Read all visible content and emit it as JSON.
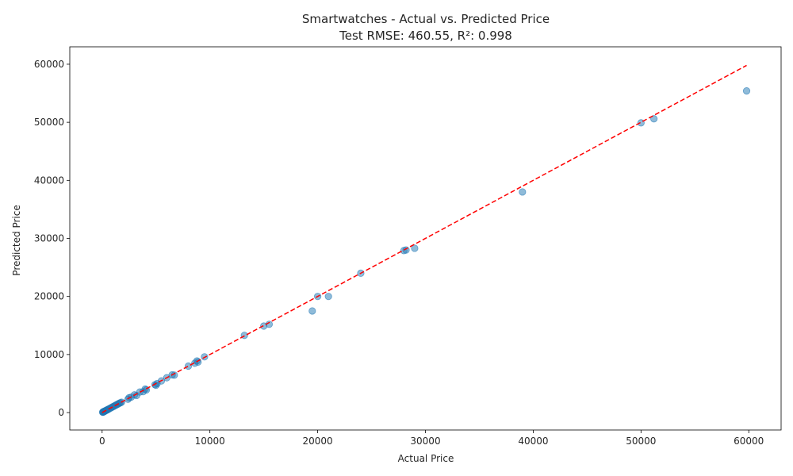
{
  "chart_data": {
    "type": "scatter",
    "title": "Smartwatches - Actual vs. Predicted Price",
    "subtitle": "Test RMSE: 460.55, R²: 0.998",
    "xlabel": "Actual Price",
    "ylabel": "Predicted Price",
    "xlim": [
      -3000,
      63000
    ],
    "ylim": [
      -3000,
      63000
    ],
    "xticks": [
      0,
      10000,
      20000,
      30000,
      40000,
      50000,
      60000
    ],
    "yticks": [
      0,
      10000,
      20000,
      30000,
      40000,
      50000,
      60000
    ],
    "grid": false,
    "point_color": "#1f77b4",
    "line_color": "#ff0000",
    "reference_line": {
      "x": [
        0,
        59800
      ],
      "y": [
        0,
        59800
      ]
    },
    "points": [
      {
        "x": 50,
        "y": 60
      },
      {
        "x": 80,
        "y": 70
      },
      {
        "x": 100,
        "y": 110
      },
      {
        "x": 120,
        "y": 130
      },
      {
        "x": 150,
        "y": 140
      },
      {
        "x": 180,
        "y": 190
      },
      {
        "x": 200,
        "y": 210
      },
      {
        "x": 230,
        "y": 220
      },
      {
        "x": 250,
        "y": 260
      },
      {
        "x": 300,
        "y": 290
      },
      {
        "x": 350,
        "y": 360
      },
      {
        "x": 400,
        "y": 390
      },
      {
        "x": 450,
        "y": 460
      },
      {
        "x": 500,
        "y": 490
      },
      {
        "x": 550,
        "y": 560
      },
      {
        "x": 600,
        "y": 610
      },
      {
        "x": 700,
        "y": 690
      },
      {
        "x": 800,
        "y": 810
      },
      {
        "x": 900,
        "y": 890
      },
      {
        "x": 1000,
        "y": 1010
      },
      {
        "x": 1100,
        "y": 1090
      },
      {
        "x": 1200,
        "y": 1220
      },
      {
        "x": 1300,
        "y": 1290
      },
      {
        "x": 1400,
        "y": 1420
      },
      {
        "x": 1500,
        "y": 1480
      },
      {
        "x": 1600,
        "y": 1620
      },
      {
        "x": 1700,
        "y": 1690
      },
      {
        "x": 1800,
        "y": 1780
      },
      {
        "x": 2400,
        "y": 2300
      },
      {
        "x": 2500,
        "y": 2550
      },
      {
        "x": 2700,
        "y": 2650
      },
      {
        "x": 3000,
        "y": 3050
      },
      {
        "x": 3200,
        "y": 2950
      },
      {
        "x": 3500,
        "y": 3550
      },
      {
        "x": 3800,
        "y": 3600
      },
      {
        "x": 4000,
        "y": 4050
      },
      {
        "x": 4100,
        "y": 3900
      },
      {
        "x": 4900,
        "y": 4800
      },
      {
        "x": 5000,
        "y": 4700
      },
      {
        "x": 5100,
        "y": 5000
      },
      {
        "x": 5500,
        "y": 5450
      },
      {
        "x": 6000,
        "y": 6000
      },
      {
        "x": 6500,
        "y": 6500
      },
      {
        "x": 6700,
        "y": 6450
      },
      {
        "x": 8000,
        "y": 8000
      },
      {
        "x": 8600,
        "y": 8500
      },
      {
        "x": 8800,
        "y": 8900
      },
      {
        "x": 8900,
        "y": 8700
      },
      {
        "x": 9500,
        "y": 9600
      },
      {
        "x": 13200,
        "y": 13300
      },
      {
        "x": 15000,
        "y": 14900
      },
      {
        "x": 15500,
        "y": 15200
      },
      {
        "x": 19500,
        "y": 17500
      },
      {
        "x": 20000,
        "y": 20000
      },
      {
        "x": 21000,
        "y": 20000
      },
      {
        "x": 24000,
        "y": 24000
      },
      {
        "x": 28000,
        "y": 27900
      },
      {
        "x": 28200,
        "y": 28000
      },
      {
        "x": 29000,
        "y": 28300
      },
      {
        "x": 39000,
        "y": 38000
      },
      {
        "x": 50000,
        "y": 49900
      },
      {
        "x": 51200,
        "y": 50600
      },
      {
        "x": 59800,
        "y": 55400
      }
    ]
  }
}
